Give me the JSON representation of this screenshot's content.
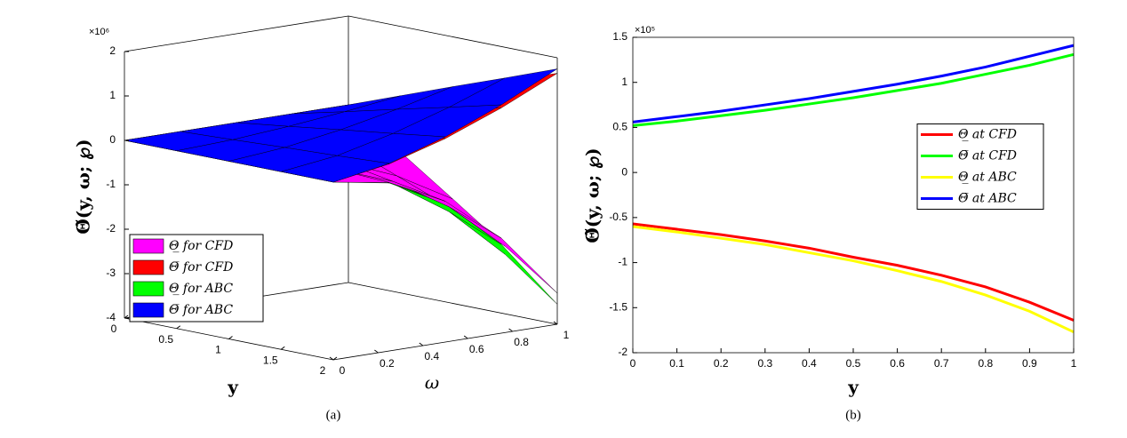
{
  "chart_data": [
    {
      "type": "surface",
      "caption": "(a)",
      "xlabel": "y",
      "ylabel": "ω",
      "zlabel": "Θ̃(y, ω; ℘)",
      "z_multiplier": "×10⁶",
      "xlim": [
        0,
        2
      ],
      "ylim": [
        0,
        1
      ],
      "zlim": [
        -4,
        2
      ],
      "xticks": [
        0,
        0.5,
        1,
        1.5,
        2
      ],
      "yticks": [
        0,
        0.2,
        0.4,
        0.6,
        0.8,
        1
      ],
      "zticks": [
        -4,
        -3,
        -2,
        -1,
        0,
        1,
        2
      ],
      "legend_loc": "lower left",
      "x": [
        0,
        0.5,
        1,
        1.5,
        2
      ],
      "y": [
        0,
        0.25,
        0.5,
        0.75,
        1
      ],
      "series": [
        {
          "name": "Θ̲ for CFD",
          "color": "#ff00ff",
          "values": [
            [
              0,
              0,
              0,
              0,
              0
            ],
            [
              0,
              -0.05,
              -0.21,
              -0.46,
              -0.83
            ],
            [
              0,
              -0.1,
              -0.41,
              -0.93,
              -1.65
            ],
            [
              0,
              -0.15,
              -0.62,
              -1.39,
              -2.48
            ],
            [
              0,
              -0.21,
              -0.83,
              -1.86,
              -3.3
            ]
          ]
        },
        {
          "name": "Θ̅ for CFD",
          "color": "#ff0000",
          "values": [
            [
              0,
              0,
              0,
              0,
              0
            ],
            [
              0,
              0.05,
              0.15,
              0.27,
              0.41
            ],
            [
              0,
              0.1,
              0.29,
              0.54,
              0.83
            ],
            [
              0,
              0.15,
              0.44,
              0.8,
              1.24
            ],
            [
              0,
              0.21,
              0.58,
              1.07,
              1.65
            ]
          ]
        },
        {
          "name": "Θ̲ for ABC",
          "color": "#00ff00",
          "values": [
            [
              0,
              0,
              0,
              0,
              0
            ],
            [
              0,
              -0.06,
              -0.22,
              -0.5,
              -0.89
            ],
            [
              0,
              -0.11,
              -0.44,
              -1,
              -1.78
            ],
            [
              0,
              -0.17,
              -0.67,
              -1.5,
              -2.66
            ],
            [
              0,
              -0.22,
              -0.89,
              -2,
              -3.55
            ]
          ]
        },
        {
          "name": "Θ̅ for ABC",
          "color": "#0000ff",
          "values": [
            [
              0,
              0,
              0,
              0,
              0
            ],
            [
              0,
              0.05,
              0.15,
              0.28,
              0.44
            ],
            [
              0,
              0.11,
              0.31,
              0.57,
              0.88
            ],
            [
              0,
              0.16,
              0.46,
              0.85,
              1.31
            ],
            [
              0,
              0.22,
              0.62,
              1.14,
              1.75
            ]
          ]
        }
      ]
    },
    {
      "type": "line",
      "caption": "(b)",
      "xlabel": "y",
      "ylabel": "Θ̃(y, ω; ℘)",
      "y_multiplier": "×10⁵",
      "xlim": [
        0,
        1
      ],
      "ylim": [
        -2,
        1.5
      ],
      "xticks": [
        0,
        0.1,
        0.2,
        0.3,
        0.4,
        0.5,
        0.6,
        0.7,
        0.8,
        0.9,
        1
      ],
      "yticks": [
        -2,
        -1.5,
        -1,
        -0.5,
        0,
        0.5,
        1,
        1.5
      ],
      "legend_loc": "center right",
      "x": [
        0,
        0.1,
        0.2,
        0.3,
        0.4,
        0.5,
        0.6,
        0.7,
        0.8,
        0.9,
        1
      ],
      "series": [
        {
          "name": "Θ̲ at CFD",
          "color": "#ff0000",
          "values": [
            -0.57,
            -0.63,
            -0.69,
            -0.76,
            -0.84,
            -0.94,
            -1.03,
            -1.14,
            -1.27,
            -1.44,
            -1.64
          ]
        },
        {
          "name": "Θ̅ at CFD",
          "color": "#00ff00",
          "values": [
            0.52,
            0.57,
            0.63,
            0.69,
            0.76,
            0.83,
            0.91,
            0.99,
            1.09,
            1.19,
            1.31
          ]
        },
        {
          "name": "Θ̲ at ABC",
          "color": "#ffff00",
          "values": [
            -0.6,
            -0.66,
            -0.73,
            -0.8,
            -0.89,
            -0.98,
            -1.09,
            -1.21,
            -1.36,
            -1.54,
            -1.77
          ]
        },
        {
          "name": "Θ̅ at ABC",
          "color": "#0000ff",
          "values": [
            0.56,
            0.62,
            0.68,
            0.75,
            0.82,
            0.9,
            0.98,
            1.07,
            1.17,
            1.29,
            1.41
          ]
        }
      ]
    }
  ]
}
